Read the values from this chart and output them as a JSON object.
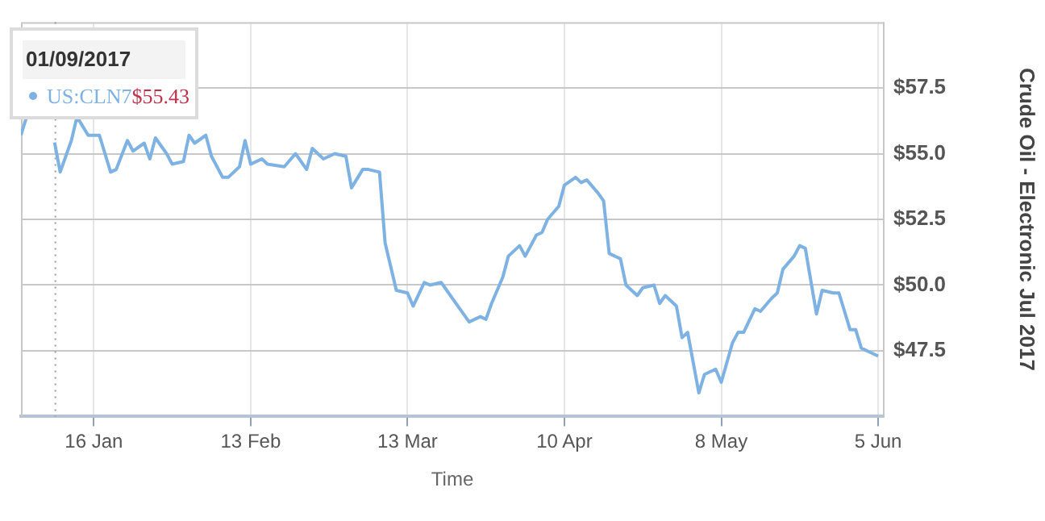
{
  "chart_data": {
    "type": "line",
    "xlabel": "Time",
    "ylabel": "Crude Oil - Electronic Jul 2017",
    "x": [
      "2017-01-03",
      "2017-01-04",
      "2017-01-06",
      "2017-01-09",
      "2017-01-10",
      "2017-01-12",
      "2017-01-13",
      "2017-01-15",
      "2017-01-17",
      "2017-01-19",
      "2017-01-20",
      "2017-01-22",
      "2017-01-23",
      "2017-01-25",
      "2017-01-26",
      "2017-01-27",
      "2017-01-29",
      "2017-01-30",
      "2017-02-01",
      "2017-02-02",
      "2017-02-03",
      "2017-02-05",
      "2017-02-06",
      "2017-02-08",
      "2017-02-09",
      "2017-02-11",
      "2017-02-12",
      "2017-02-13",
      "2017-02-15",
      "2017-02-16",
      "2017-02-19",
      "2017-02-21",
      "2017-02-23",
      "2017-02-24",
      "2017-02-26",
      "2017-02-28",
      "2017-03-02",
      "2017-03-03",
      "2017-03-05",
      "2017-03-06",
      "2017-03-08",
      "2017-03-09",
      "2017-03-11",
      "2017-03-13",
      "2017-03-14",
      "2017-03-16",
      "2017-03-17",
      "2017-03-19",
      "2017-03-20",
      "2017-03-22",
      "2017-03-23",
      "2017-03-24",
      "2017-03-26",
      "2017-03-27",
      "2017-03-28",
      "2017-03-30",
      "2017-03-31",
      "2017-04-02",
      "2017-04-03",
      "2017-04-05",
      "2017-04-06",
      "2017-04-07",
      "2017-04-09",
      "2017-04-10",
      "2017-04-12",
      "2017-04-13",
      "2017-04-14",
      "2017-04-16",
      "2017-04-17",
      "2017-04-18",
      "2017-04-20",
      "2017-04-21",
      "2017-04-23",
      "2017-04-24",
      "2017-04-26",
      "2017-04-27",
      "2017-04-28",
      "2017-04-30",
      "2017-05-01",
      "2017-05-02",
      "2017-05-04",
      "2017-05-05",
      "2017-05-07",
      "2017-05-08",
      "2017-05-10",
      "2017-05-11",
      "2017-05-12",
      "2017-05-14",
      "2017-05-15",
      "2017-05-17",
      "2017-05-18",
      "2017-05-19",
      "2017-05-21",
      "2017-05-22",
      "2017-05-23",
      "2017-05-25",
      "2017-05-26",
      "2017-05-28",
      "2017-05-29",
      "2017-05-31",
      "2017-06-01",
      "2017-06-02",
      "2017-06-04",
      "2017-06-05"
    ],
    "series": [
      {
        "color": "#7eb2e2",
        "values": [
          55.7,
          56.4,
          null,
          55.43,
          54.3,
          55.5,
          56.4,
          55.7,
          55.7,
          54.3,
          54.4,
          55.5,
          55.1,
          55.4,
          54.8,
          55.6,
          55.0,
          54.6,
          54.7,
          55.7,
          55.4,
          55.7,
          54.9,
          54.1,
          54.1,
          54.5,
          55.5,
          54.6,
          54.8,
          54.6,
          54.5,
          55.0,
          54.4,
          55.2,
          54.8,
          55.0,
          54.9,
          53.7,
          54.4,
          54.4,
          54.3,
          51.6,
          49.8,
          49.7,
          49.2,
          50.1,
          50.0,
          50.1,
          49.8,
          49.2,
          48.9,
          48.6,
          48.8,
          48.7,
          49.3,
          50.3,
          51.1,
          51.5,
          51.1,
          51.9,
          52.0,
          52.5,
          53.0,
          53.8,
          54.1,
          53.9,
          54.0,
          53.5,
          53.2,
          51.2,
          51.0,
          50.0,
          49.6,
          49.9,
          50.0,
          49.3,
          49.6,
          49.2,
          48.0,
          48.2,
          45.9,
          46.6,
          46.8,
          46.3,
          47.8,
          48.2,
          48.2,
          49.1,
          49.0,
          49.5,
          49.7,
          50.6,
          51.1,
          51.5,
          51.4,
          48.9,
          49.8,
          49.7,
          49.7,
          48.3,
          48.3,
          47.6,
          47.4,
          47.3
        ]
      }
    ],
    "xlim": [
      "2017-01-03",
      "2017-06-06"
    ],
    "xticks": [
      {
        "value": "2017-01-16",
        "label": "16 Jan"
      },
      {
        "value": "2017-02-13",
        "label": "13 Feb"
      },
      {
        "value": "2017-03-13",
        "label": "13 Mar"
      },
      {
        "value": "2017-04-10",
        "label": "10 Apr"
      },
      {
        "value": "2017-05-08",
        "label": "8 May"
      },
      {
        "value": "2017-06-05",
        "label": "5 Jun"
      }
    ],
    "ylim": [
      45,
      60
    ],
    "yticks": [
      {
        "value": 47.5,
        "label": "$47.5"
      },
      {
        "value": 50,
        "label": "$50.0"
      },
      {
        "value": 52.5,
        "label": "$52.5"
      },
      {
        "value": 55,
        "label": "$55.0"
      },
      {
        "value": 57.5,
        "label": "$57.5"
      }
    ],
    "grid": true,
    "legend": false,
    "marker": "none",
    "ref_lines": [
      {
        "axis": "x",
        "value": "2017-01-09",
        "color": "#999999",
        "line_style": "dotted"
      }
    ],
    "annotations": [
      "01/09/2017",
      "US:CLN7",
      "$55.43"
    ]
  }
}
